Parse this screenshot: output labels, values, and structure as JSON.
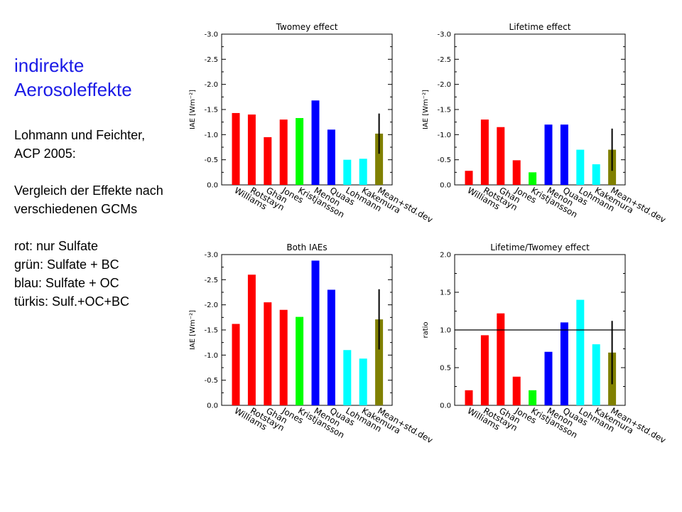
{
  "side_panel": {
    "heading": [
      "indirekte",
      "Aerosoleffekte"
    ],
    "reference": [
      "Lohmann und Feichter,",
      "ACP 2005:"
    ],
    "description": [
      "Vergleich der Effekte nach",
      "verschiedenen GCMs"
    ],
    "legend_lines": [
      "rot: nur Sulfate",
      "grün: Sulfate + BC",
      "blau: Sulfate + OC",
      "türkis: Sulf.+OC+BC"
    ]
  },
  "colors": {
    "heading": "#1a1ae6",
    "sulfate": "#ff0000",
    "sulfate_bc": "#00ff00",
    "sulfate_oc": "#0000ff",
    "sulf_oc_bc": "#00ffff",
    "mean": "#808000"
  },
  "chart_data": [
    {
      "type": "bar",
      "title": "Twomey effect",
      "ylabel": "IAE [Wm⁻²]",
      "ylim": [
        0,
        -3.0
      ],
      "y_reversed": true,
      "yticks": [
        "0.0",
        "-0.5",
        "-1.0",
        "-1.5",
        "-2.0",
        "-2.5",
        "-3.0"
      ],
      "categories": [
        "Williams",
        "Rotstayn",
        "Ghan",
        "Jones",
        "Kristjansson",
        "Menon",
        "Quaas",
        "Lohmann",
        "Kakemura",
        "Mean+std.dev"
      ],
      "values": [
        -1.43,
        -1.4,
        -0.95,
        -1.3,
        -1.33,
        -1.68,
        -1.1,
        -0.5,
        -0.52,
        -1.02
      ],
      "bar_colors": [
        "#ff0000",
        "#ff0000",
        "#ff0000",
        "#ff0000",
        "#00ff00",
        "#0000ff",
        "#0000ff",
        "#00ffff",
        "#00ffff",
        "#808000"
      ],
      "error": [
        null,
        null,
        null,
        null,
        null,
        null,
        null,
        null,
        null,
        0.4
      ]
    },
    {
      "type": "bar",
      "title": "Lifetime effect",
      "ylabel": "IAE [Wm⁻²]",
      "ylim": [
        0,
        -3.0
      ],
      "y_reversed": true,
      "yticks": [
        "0.0",
        "-0.5",
        "-1.0",
        "-1.5",
        "-2.0",
        "-2.5",
        "-3.0"
      ],
      "categories": [
        "Williams",
        "Rotstayn",
        "Ghan",
        "Jones",
        "Kristjansson",
        "Menon",
        "Quaas",
        "Lohmann",
        "Kakemura",
        "Mean+std.dev"
      ],
      "values": [
        -0.28,
        -1.3,
        -1.15,
        -0.49,
        -0.25,
        -1.2,
        -1.2,
        -0.7,
        -0.41,
        -0.7
      ],
      "bar_colors": [
        "#ff0000",
        "#ff0000",
        "#ff0000",
        "#ff0000",
        "#00ff00",
        "#0000ff",
        "#0000ff",
        "#00ffff",
        "#00ffff",
        "#808000"
      ],
      "error": [
        null,
        null,
        null,
        null,
        null,
        null,
        null,
        null,
        null,
        0.42
      ]
    },
    {
      "type": "bar",
      "title": "Both IAEs",
      "ylabel": "IAE [Wm⁻²]",
      "ylim": [
        0,
        -3.0
      ],
      "y_reversed": true,
      "yticks": [
        "0.0",
        "-0.5",
        "-1.0",
        "-1.5",
        "-2.0",
        "-2.5",
        "-3.0"
      ],
      "categories": [
        "Williams",
        "Rotstayn",
        "Ghan",
        "Jones",
        "Kristjansson",
        "Menon",
        "Quaas",
        "Lohmann",
        "Kakemura",
        "Mean+std.dev"
      ],
      "values": [
        -1.62,
        -2.6,
        -2.05,
        -1.9,
        -1.76,
        -2.88,
        -2.3,
        -1.1,
        -0.93,
        -1.71
      ],
      "bar_colors": [
        "#ff0000",
        "#ff0000",
        "#ff0000",
        "#ff0000",
        "#00ff00",
        "#0000ff",
        "#0000ff",
        "#00ffff",
        "#00ffff",
        "#808000"
      ],
      "error": [
        null,
        null,
        null,
        null,
        null,
        null,
        null,
        null,
        null,
        0.6
      ]
    },
    {
      "type": "bar",
      "title": "Lifetime/Twomey effect",
      "ylabel": "ratio",
      "ylim": [
        0,
        2.0
      ],
      "y_reversed": false,
      "yticks": [
        "0.0",
        "0.5",
        "1.0",
        "1.5",
        "2.0"
      ],
      "categories": [
        "Williams",
        "Rotstayn",
        "Ghan",
        "Jones",
        "Kristjansson",
        "Menon",
        "Quaas",
        "Lohmann",
        "Kakemura",
        "Mean+std.dev"
      ],
      "values": [
        0.2,
        0.93,
        1.22,
        0.38,
        0.2,
        0.71,
        1.1,
        1.4,
        0.81,
        0.7
      ],
      "bar_colors": [
        "#ff0000",
        "#ff0000",
        "#ff0000",
        "#ff0000",
        "#00ff00",
        "#0000ff",
        "#0000ff",
        "#00ffff",
        "#00ffff",
        "#808000"
      ],
      "error": [
        null,
        null,
        null,
        null,
        null,
        null,
        null,
        null,
        null,
        0.42
      ],
      "reference_line": 1.0
    }
  ]
}
